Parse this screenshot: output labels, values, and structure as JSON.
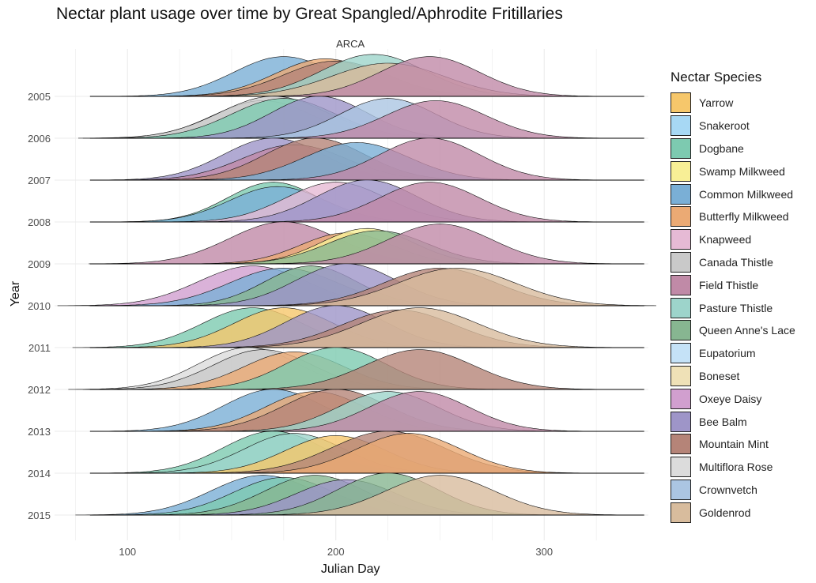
{
  "chart_data": {
    "type": "area",
    "subtype": "ridgeline",
    "title": "Nectar plant usage over time by Great Spangled/Aphrodite Fritillaries",
    "facet_label": "ARCA",
    "xlabel": "Julian Day",
    "ylabel": "Year",
    "xlim": [
      65,
      350
    ],
    "xticks": [
      100,
      200,
      300
    ],
    "years": [
      "2005",
      "2006",
      "2007",
      "2008",
      "2009",
      "2010",
      "2011",
      "2012",
      "2013",
      "2014",
      "2015"
    ],
    "legend_title": "Nectar Species",
    "legend_position": "right",
    "grid": true,
    "species": [
      {
        "name": "Yarrow",
        "color": "#F6C76B"
      },
      {
        "name": "Snakeroot",
        "color": "#A7D8F4"
      },
      {
        "name": "Dogbane",
        "color": "#7DCAB0"
      },
      {
        "name": "Swamp Milkweed",
        "color": "#F8EF96"
      },
      {
        "name": "Common Milkweed",
        "color": "#7AAFD6"
      },
      {
        "name": "Butterfly Milkweed",
        "color": "#EBAA74"
      },
      {
        "name": "Knapweed",
        "color": "#E6BAD5"
      },
      {
        "name": "Canada Thistle",
        "color": "#C9C9C9"
      },
      {
        "name": "Field Thistle",
        "color": "#C08AA7"
      },
      {
        "name": "Pasture Thistle",
        "color": "#9DD4CB"
      },
      {
        "name": "Queen Anne's Lace",
        "color": "#87B691"
      },
      {
        "name": "Eupatorium",
        "color": "#C5E2F7"
      },
      {
        "name": "Boneset",
        "color": "#EFE1B7"
      },
      {
        "name": "Oxeye Daisy",
        "color": "#D19FCF"
      },
      {
        "name": "Bee Balm",
        "color": "#9E95C8"
      },
      {
        "name": "Mountain Mint",
        "color": "#B58478"
      },
      {
        "name": "Multiflora Rose",
        "color": "#DCDCDC"
      },
      {
        "name": "Crownvetch",
        "color": "#ABC5E2"
      },
      {
        "name": "Goldenrod",
        "color": "#D8BC9D"
      }
    ],
    "series": [
      {
        "year": "2005",
        "curves": [
          {
            "species": "Common Milkweed",
            "peak_day": 175,
            "sd": 24,
            "height": 0.9
          },
          {
            "species": "Butterfly Milkweed",
            "peak_day": 195,
            "sd": 24,
            "height": 0.85
          },
          {
            "species": "Mountain Mint",
            "peak_day": 200,
            "sd": 25,
            "height": 0.8
          },
          {
            "species": "Pasture Thistle",
            "peak_day": 218,
            "sd": 25,
            "height": 0.95
          },
          {
            "species": "Goldenrod",
            "peak_day": 225,
            "sd": 27,
            "height": 0.75
          },
          {
            "species": "Field Thistle",
            "peak_day": 245,
            "sd": 24,
            "height": 0.9
          }
        ]
      },
      {
        "year": "2006",
        "curves": [
          {
            "species": "Canada Thistle",
            "peak_day": 170,
            "sd": 26,
            "height": 0.95
          },
          {
            "species": "Multiflora Rose",
            "peak_day": 165,
            "sd": 24,
            "height": 0.85
          },
          {
            "species": "Dogbane",
            "peak_day": 175,
            "sd": 25,
            "height": 0.9
          },
          {
            "species": "Bee Balm",
            "peak_day": 192,
            "sd": 23,
            "height": 0.95
          },
          {
            "species": "Crownvetch",
            "peak_day": 225,
            "sd": 23,
            "height": 0.9
          },
          {
            "species": "Field Thistle",
            "peak_day": 248,
            "sd": 24,
            "height": 0.85
          }
        ]
      },
      {
        "year": "2007",
        "curves": [
          {
            "species": "Bee Balm",
            "peak_day": 170,
            "sd": 24,
            "height": 0.95
          },
          {
            "species": "Mountain Mint",
            "peak_day": 190,
            "sd": 24,
            "height": 0.95
          },
          {
            "species": "Field Thistle",
            "peak_day": 180,
            "sd": 25,
            "height": 0.8
          },
          {
            "species": "Common Milkweed",
            "peak_day": 210,
            "sd": 25,
            "height": 0.85
          },
          {
            "species": "Field Thistle",
            "peak_day": 245,
            "sd": 24,
            "height": 0.95
          }
        ]
      },
      {
        "year": "2008",
        "curves": [
          {
            "species": "Dogbane",
            "peak_day": 170,
            "sd": 22,
            "height": 0.9
          },
          {
            "species": "Common Milkweed",
            "peak_day": 172,
            "sd": 23,
            "height": 0.8
          },
          {
            "species": "Knapweed",
            "peak_day": 200,
            "sd": 24,
            "height": 0.9
          },
          {
            "species": "Bee Balm",
            "peak_day": 215,
            "sd": 24,
            "height": 0.95
          },
          {
            "species": "Field Thistle",
            "peak_day": 245,
            "sd": 24,
            "height": 0.9
          }
        ]
      },
      {
        "year": "2009",
        "curves": [
          {
            "species": "Field Thistle",
            "peak_day": 175,
            "sd": 26,
            "height": 0.95
          },
          {
            "species": "Butterfly Milkweed",
            "peak_day": 205,
            "sd": 22,
            "height": 0.7
          },
          {
            "species": "Swamp Milkweed",
            "peak_day": 215,
            "sd": 22,
            "height": 0.8
          },
          {
            "species": "Queen Anne's Lace",
            "peak_day": 220,
            "sd": 24,
            "height": 0.75
          },
          {
            "species": "Field Thistle",
            "peak_day": 250,
            "sd": 25,
            "height": 0.9
          }
        ]
      },
      {
        "year": "2010",
        "curves": [
          {
            "species": "Oxeye Daisy",
            "peak_day": 160,
            "sd": 26,
            "height": 0.9
          },
          {
            "species": "Common Milkweed",
            "peak_day": 175,
            "sd": 26,
            "height": 0.85
          },
          {
            "species": "Queen Anne's Lace",
            "peak_day": 188,
            "sd": 22,
            "height": 0.9
          },
          {
            "species": "Bee Balm",
            "peak_day": 205,
            "sd": 24,
            "height": 0.95
          },
          {
            "species": "Mountain Mint",
            "peak_day": 250,
            "sd": 27,
            "height": 0.85
          },
          {
            "species": "Goldenrod",
            "peak_day": 258,
            "sd": 28,
            "height": 0.85
          }
        ]
      },
      {
        "year": "2011",
        "curves": [
          {
            "species": "Dogbane",
            "peak_day": 160,
            "sd": 24,
            "height": 0.9
          },
          {
            "species": "Yarrow",
            "peak_day": 175,
            "sd": 24,
            "height": 0.9
          },
          {
            "species": "Bee Balm",
            "peak_day": 200,
            "sd": 24,
            "height": 0.95
          },
          {
            "species": "Mountain Mint",
            "peak_day": 230,
            "sd": 27,
            "height": 0.85
          },
          {
            "species": "Goldenrod",
            "peak_day": 240,
            "sd": 28,
            "height": 0.9
          }
        ]
      },
      {
        "year": "2012",
        "curves": [
          {
            "species": "Multiflora Rose",
            "peak_day": 158,
            "sd": 24,
            "height": 0.95
          },
          {
            "species": "Canada Thistle",
            "peak_day": 165,
            "sd": 24,
            "height": 0.9
          },
          {
            "species": "Butterfly Milkweed",
            "peak_day": 180,
            "sd": 24,
            "height": 0.85
          },
          {
            "species": "Dogbane",
            "peak_day": 200,
            "sd": 24,
            "height": 0.95
          },
          {
            "species": "Mountain Mint",
            "peak_day": 240,
            "sd": 26,
            "height": 0.9
          }
        ]
      },
      {
        "year": "2013",
        "curves": [
          {
            "species": "Common Milkweed",
            "peak_day": 170,
            "sd": 24,
            "height": 0.95
          },
          {
            "species": "Butterfly Milkweed",
            "peak_day": 190,
            "sd": 24,
            "height": 0.9
          },
          {
            "species": "Mountain Mint",
            "peak_day": 200,
            "sd": 25,
            "height": 0.95
          },
          {
            "species": "Pasture Thistle",
            "peak_day": 225,
            "sd": 24,
            "height": 0.9
          },
          {
            "species": "Field Thistle",
            "peak_day": 240,
            "sd": 24,
            "height": 0.9
          }
        ]
      },
      {
        "year": "2014",
        "curves": [
          {
            "species": "Dogbane",
            "peak_day": 170,
            "sd": 24,
            "height": 0.95
          },
          {
            "species": "Pasture Thistle",
            "peak_day": 180,
            "sd": 24,
            "height": 0.9
          },
          {
            "species": "Yarrow",
            "peak_day": 200,
            "sd": 24,
            "height": 0.85
          },
          {
            "species": "Mountain Mint",
            "peak_day": 225,
            "sd": 27,
            "height": 0.95
          },
          {
            "species": "Butterfly Milkweed",
            "peak_day": 235,
            "sd": 25,
            "height": 0.9
          }
        ]
      },
      {
        "year": "2015",
        "curves": [
          {
            "species": "Common Milkweed",
            "peak_day": 165,
            "sd": 25,
            "height": 0.9
          },
          {
            "species": "Dogbane",
            "peak_day": 175,
            "sd": 24,
            "height": 0.85
          },
          {
            "species": "Queen Anne's Lace",
            "peak_day": 190,
            "sd": 24,
            "height": 0.9
          },
          {
            "species": "Bee Balm",
            "peak_day": 205,
            "sd": 24,
            "height": 0.8
          },
          {
            "species": "Queen Anne's Lace",
            "peak_day": 225,
            "sd": 24,
            "height": 0.95
          },
          {
            "species": "Goldenrod",
            "peak_day": 250,
            "sd": 26,
            "height": 0.9
          }
        ]
      }
    ]
  }
}
